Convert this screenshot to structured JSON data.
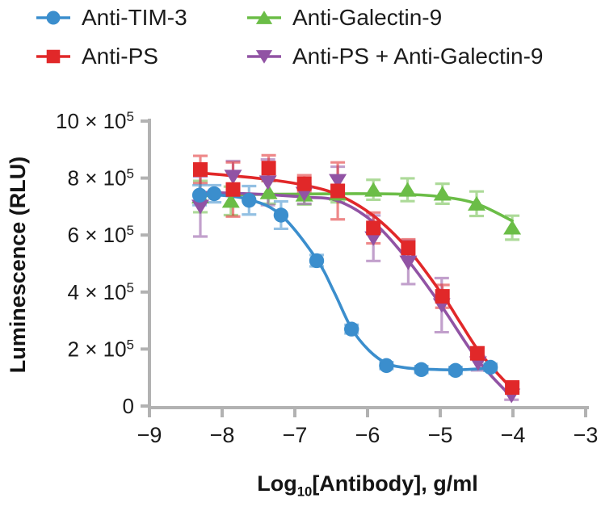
{
  "colors": {
    "axis": "#b2b2b2",
    "text": "#1b1b1b",
    "blue": "#3b8ecd",
    "red": "#e12829",
    "green": "#6bbd47",
    "purple": "#9153a4"
  },
  "chart_data": {
    "type": "scatter",
    "fit": "sigmoidal dose-response fitted curves with error bars",
    "title": "",
    "xlabel": {
      "prefix": "Log",
      "sub": "10",
      "suffix": "[Antibody], g/ml"
    },
    "ylabel": "Luminescence (RLU)",
    "xlim": [
      -9,
      -3
    ],
    "ylim": [
      0,
      10
    ],
    "y_unit": "×10⁵ RLU",
    "grid": false,
    "legend_position": "top",
    "x_ticks": [
      {
        "v": -9,
        "label": "−9"
      },
      {
        "v": -8,
        "label": "−8"
      },
      {
        "v": -7,
        "label": "−7"
      },
      {
        "v": -6,
        "label": "−6"
      },
      {
        "v": -5,
        "label": "−5"
      },
      {
        "v": -4,
        "label": "−4"
      },
      {
        "v": -3,
        "label": "−3"
      }
    ],
    "y_ticks": [
      {
        "v": 0,
        "text": "0",
        "sup": ""
      },
      {
        "v": 2,
        "text": "2 × 10",
        "sup": "5"
      },
      {
        "v": 4,
        "text": "4 × 10",
        "sup": "5"
      },
      {
        "v": 6,
        "text": "6 × 10",
        "sup": "5"
      },
      {
        "v": 8,
        "text": "8 × 10",
        "sup": "5"
      },
      {
        "v": 10,
        "text": "10 × 10",
        "sup": "5"
      }
    ],
    "series": [
      {
        "name": "Anti-Galectin-9",
        "marker": "triangle-up",
        "color": "#6bbd47",
        "points": [
          {
            "x": -8.3,
            "y": 7.35,
            "e": 0.55
          },
          {
            "x": -7.88,
            "y": 7.2,
            "e": 0.5
          },
          {
            "x": -7.36,
            "y": 7.5,
            "e": 0.4
          },
          {
            "x": -6.87,
            "y": 7.42,
            "e": 0.35
          },
          {
            "x": -6.41,
            "y": 7.45,
            "e": 0.3
          },
          {
            "x": -5.92,
            "y": 7.59,
            "e": 0.35
          },
          {
            "x": -5.45,
            "y": 7.59,
            "e": 0.4
          },
          {
            "x": -4.97,
            "y": 7.45,
            "e": 0.35
          },
          {
            "x": -4.5,
            "y": 7.1,
            "e": 0.43
          },
          {
            "x": -4.01,
            "y": 6.26,
            "e": 0.42
          }
        ],
        "curve": [
          [
            -8.3,
            7.38
          ],
          [
            -7.86,
            7.41
          ],
          [
            -7.36,
            7.43
          ],
          [
            -6.87,
            7.44
          ],
          [
            -6.41,
            7.45
          ],
          [
            -5.92,
            7.45
          ],
          [
            -5.45,
            7.43
          ],
          [
            -4.97,
            7.34
          ],
          [
            -4.5,
            7.1
          ],
          [
            -4.01,
            6.5
          ]
        ]
      },
      {
        "name": "Anti-PS + Anti-Galectin-9",
        "marker": "triangle-down",
        "color": "#9153a4",
        "points": [
          {
            "x": -8.3,
            "y": 7.0,
            "e": 1.05
          },
          {
            "x": -7.85,
            "y": 8.05,
            "e": 0.55
          },
          {
            "x": -7.37,
            "y": 7.85,
            "e": 0.8
          },
          {
            "x": -6.87,
            "y": 7.45,
            "e": 0.35
          },
          {
            "x": -6.41,
            "y": 7.9,
            "e": 0.5
          },
          {
            "x": -5.92,
            "y": 5.89,
            "e": 0.8
          },
          {
            "x": -5.44,
            "y": 5.04,
            "e": 0.76
          },
          {
            "x": -4.98,
            "y": 3.54,
            "e": 0.95
          },
          {
            "x": -4.48,
            "y": 1.5,
            "e": 0.25
          },
          {
            "x": -4.02,
            "y": 0.37,
            "e": 0.15
          }
        ],
        "curve": [
          [
            -8.3,
            7.5
          ],
          [
            -7.85,
            7.47
          ],
          [
            -7.37,
            7.42
          ],
          [
            -6.87,
            7.33
          ],
          [
            -6.41,
            7.2
          ],
          [
            -5.92,
            6.45
          ],
          [
            -5.44,
            5.1
          ],
          [
            -4.98,
            3.5
          ],
          [
            -4.48,
            1.6
          ],
          [
            -4.02,
            0.32
          ]
        ]
      },
      {
        "name": "Anti-PS",
        "marker": "square",
        "color": "#e12829",
        "points": [
          {
            "x": -8.3,
            "y": 8.3,
            "e": 0.48
          },
          {
            "x": -7.85,
            "y": 7.6,
            "e": 0.95
          },
          {
            "x": -7.36,
            "y": 8.35,
            "e": 0.45
          },
          {
            "x": -6.87,
            "y": 7.8,
            "e": 0.3
          },
          {
            "x": -6.41,
            "y": 7.55,
            "e": 1.0
          },
          {
            "x": -5.92,
            "y": 6.25,
            "e": 0.54
          },
          {
            "x": -5.44,
            "y": 5.55,
            "e": 0.3
          },
          {
            "x": -4.97,
            "y": 3.85,
            "e": 0.4
          },
          {
            "x": -4.49,
            "y": 1.85,
            "e": 0.2
          },
          {
            "x": -4.01,
            "y": 0.65,
            "e": 0.15
          }
        ],
        "curve": [
          [
            -8.3,
            8.18
          ],
          [
            -7.85,
            8.08
          ],
          [
            -7.36,
            7.95
          ],
          [
            -6.87,
            7.75
          ],
          [
            -6.41,
            7.42
          ],
          [
            -5.92,
            6.68
          ],
          [
            -5.44,
            5.5
          ],
          [
            -4.97,
            3.9
          ],
          [
            -4.73,
            2.95
          ],
          [
            -4.49,
            2.0
          ],
          [
            -4.25,
            1.25
          ],
          [
            -4.01,
            0.6
          ]
        ]
      },
      {
        "name": "Anti-TIM-3",
        "marker": "circle",
        "color": "#3b8ecd",
        "points": [
          {
            "x": -8.31,
            "y": 7.4,
            "e": 0.35
          },
          {
            "x": -8.11,
            "y": 7.45,
            "e": 0.3
          },
          {
            "x": -7.63,
            "y": 7.22,
            "e": 0.5
          },
          {
            "x": -7.19,
            "y": 6.7,
            "e": 0.48
          },
          {
            "x": -6.7,
            "y": 5.1,
            "e": 0.2
          },
          {
            "x": -6.22,
            "y": 2.7,
            "e": 0.15
          },
          {
            "x": -5.74,
            "y": 1.42,
            "e": 0.12
          },
          {
            "x": -5.26,
            "y": 1.28,
            "e": 0.12
          },
          {
            "x": -4.79,
            "y": 1.25,
            "e": 0.12
          },
          {
            "x": -4.31,
            "y": 1.36,
            "e": 0.12
          }
        ],
        "curve": [
          [
            -8.31,
            7.45
          ],
          [
            -8.11,
            7.42
          ],
          [
            -7.63,
            7.25
          ],
          [
            -7.19,
            6.7
          ],
          [
            -6.7,
            5.15
          ],
          [
            -6.46,
            4.0
          ],
          [
            -6.22,
            2.72
          ],
          [
            -5.98,
            1.95
          ],
          [
            -5.74,
            1.5
          ],
          [
            -5.5,
            1.35
          ],
          [
            -5.26,
            1.3
          ],
          [
            -4.79,
            1.27
          ],
          [
            -4.31,
            1.33
          ]
        ]
      }
    ]
  },
  "legend": {
    "order_series_indexes": [
      3,
      2,
      0,
      1
    ]
  }
}
